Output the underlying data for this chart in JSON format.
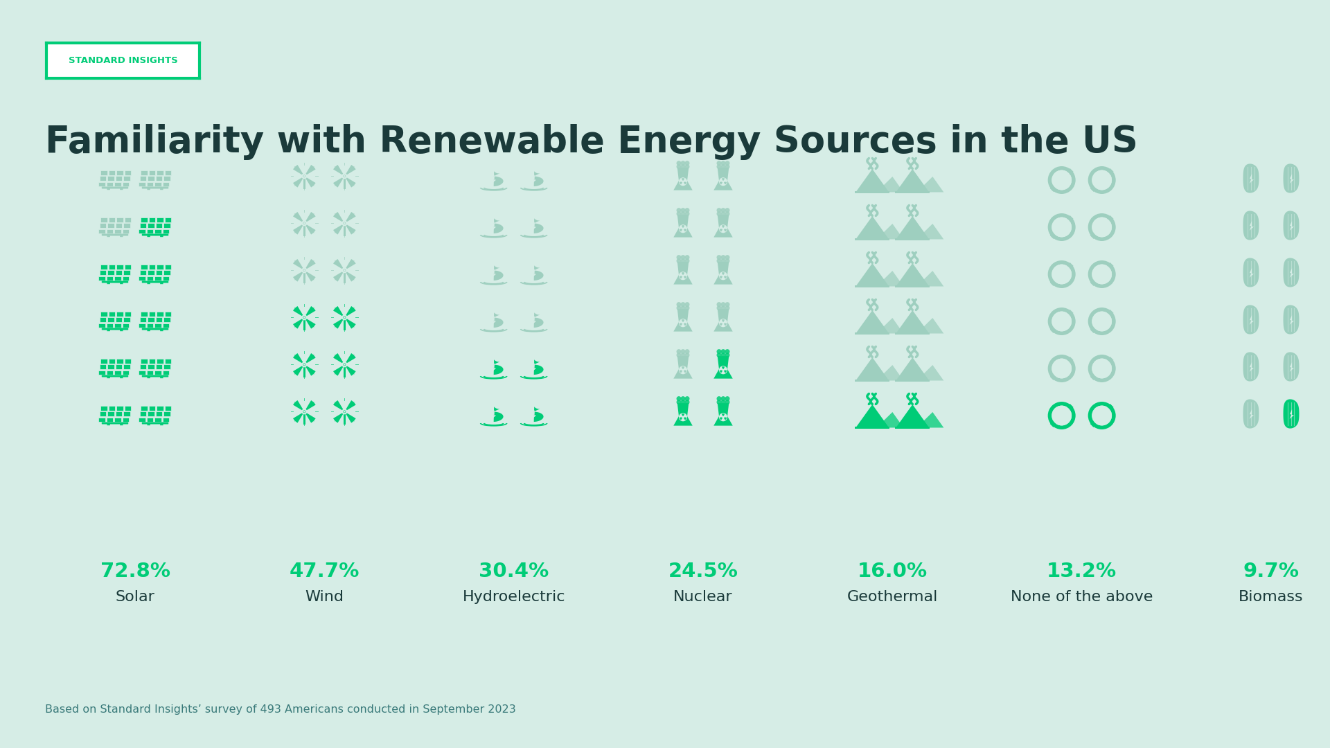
{
  "bg_color": "#d6ede6",
  "title": "Familiarity with Renewable Energy Sources in the US",
  "title_color": "#1a3a3a",
  "title_fontsize": 38,
  "brand_label": "STANDARD INSIGHTS",
  "brand_color": "#00cc77",
  "brand_bg": "#ffffff",
  "footnote": "Based on Standard Insights’ survey of 493 Americans conducted in September 2023",
  "footnote_color": "#3a7a7a",
  "categories": [
    "Solar",
    "Wind",
    "Hydroelectric",
    "Nuclear",
    "Geothermal",
    "None of the above",
    "Biomass"
  ],
  "percentages": [
    72.8,
    47.7,
    30.4,
    24.5,
    16.0,
    13.2,
    9.7
  ],
  "pct_color": "#00cc77",
  "label_color": "#1a3a3a",
  "icon_color_active": "#00cc77",
  "icon_color_inactive": "#9ecfbf",
  "n_cols": 2,
  "n_rows": 6
}
